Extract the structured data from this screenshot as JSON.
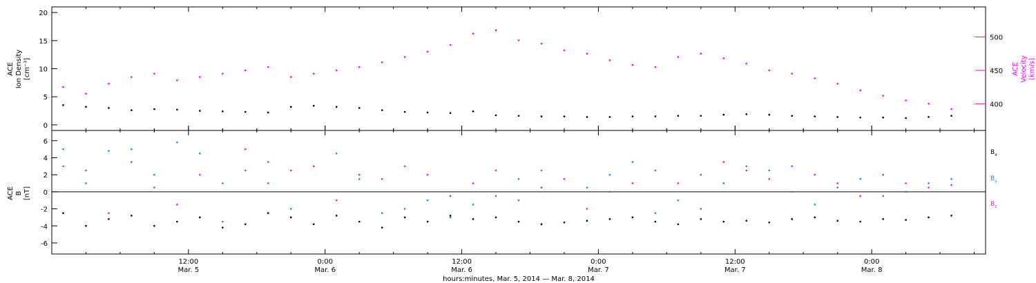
{
  "chart_data": [
    {
      "type": "scatter",
      "panel": "top",
      "xlim_hours": [
        0,
        82
      ],
      "x_ticks": [
        {
          "time": "12:00",
          "date": "Mar. 5"
        },
        {
          "time": "0:00",
          "date": "Mar. 6"
        },
        {
          "time": "12:00",
          "date": "Mar. 6"
        },
        {
          "time": "0:00",
          "date": "Mar. 7"
        },
        {
          "time": "12:00",
          "date": "Mar. 7"
        },
        {
          "time": "0:00",
          "date": "Mar. 8"
        }
      ],
      "left_axis": {
        "label_lines": [
          "ACE",
          "Ion Density",
          "[cm⁻³]"
        ],
        "ylim": [
          -1,
          21
        ],
        "ticks": [
          "0",
          "5",
          "10",
          "15",
          "20"
        ],
        "color": "#000000"
      },
      "right_axis": {
        "label_lines": [
          "ACE",
          "Velocity",
          "[km/s]"
        ],
        "ylim": [
          360,
          545
        ],
        "ticks": [
          "400",
          "450",
          "500"
        ],
        "color": "#ff00ff"
      },
      "series": [
        {
          "series_id": "density",
          "axis": "left",
          "color": "#000000",
          "x": [
            1,
            3,
            5,
            7,
            9,
            11,
            13,
            15,
            17,
            19,
            21,
            23,
            25,
            27,
            29,
            31,
            33,
            35,
            37,
            39,
            41,
            43,
            45,
            47,
            49,
            51,
            53,
            55,
            57,
            59,
            61,
            63,
            65,
            67,
            69,
            71,
            73,
            75,
            77,
            79
          ],
          "y": [
            3.5,
            3.2,
            3.0,
            2.6,
            2.8,
            2.7,
            2.5,
            2.4,
            2.3,
            2.2,
            3.2,
            3.4,
            3.2,
            3.0,
            2.6,
            2.3,
            2.2,
            2.1,
            2.4,
            1.7,
            1.6,
            1.5,
            1.5,
            1.4,
            1.4,
            1.5,
            1.5,
            1.6,
            1.6,
            1.8,
            1.9,
            1.8,
            1.6,
            1.5,
            1.4,
            1.3,
            1.3,
            1.2,
            1.4,
            1.6
          ]
        },
        {
          "series_id": "velocity",
          "axis": "right",
          "color": "#ff00ff",
          "x": [
            1,
            3,
            5,
            7,
            9,
            11,
            13,
            15,
            17,
            19,
            21,
            23,
            25,
            27,
            29,
            31,
            33,
            35,
            37,
            39,
            41,
            43,
            45,
            47,
            49,
            51,
            53,
            55,
            57,
            59,
            61,
            63,
            65,
            67,
            69,
            71,
            73,
            75,
            77,
            79
          ],
          "y": [
            425,
            415,
            430,
            440,
            445,
            435,
            440,
            445,
            450,
            455,
            440,
            445,
            450,
            455,
            462,
            470,
            478,
            488,
            505,
            510,
            495,
            490,
            480,
            475,
            465,
            458,
            455,
            470,
            475,
            468,
            460,
            450,
            445,
            438,
            430,
            420,
            412,
            405,
            400,
            392
          ]
        }
      ]
    },
    {
      "type": "scatter",
      "panel": "bottom",
      "xlim_hours": [
        0,
        82
      ],
      "left_axis": {
        "label_lines": [
          "ACE",
          "B",
          "[nT]"
        ],
        "ylim": [
          -7.3,
          7.2
        ],
        "ticks": [
          "-6",
          "-4",
          "-2",
          "0",
          "2",
          "4",
          "6"
        ],
        "color": "#000000"
      },
      "zero_line": 0,
      "legend": [
        {
          "label": "B",
          "sub": "x",
          "color": "#000000"
        },
        {
          "label": "B",
          "sub": "y",
          "color": "#1e88e5"
        },
        {
          "label": "B",
          "sub": "z",
          "color": "#e020e0"
        }
      ],
      "series": [
        {
          "series_id": "bx",
          "color": "#000000",
          "x": [
            1,
            3,
            5,
            7,
            9,
            11,
            13,
            15,
            17,
            19,
            21,
            23,
            25,
            27,
            29,
            31,
            33,
            35,
            37,
            39,
            41,
            43,
            45,
            47,
            49,
            51,
            53,
            55,
            57,
            59,
            61,
            63,
            65,
            67,
            69,
            71,
            73,
            75,
            77,
            79
          ],
          "y": [
            -2.5,
            -4.0,
            -3.2,
            -2.8,
            -4.0,
            -3.5,
            -3.0,
            -4.2,
            -3.8,
            -2.5,
            -3.0,
            -3.8,
            -2.8,
            -3.5,
            -4.2,
            -3.0,
            -3.5,
            -2.8,
            -3.2,
            -3.0,
            -3.5,
            -3.8,
            -3.6,
            -3.4,
            -3.2,
            -3.0,
            -3.5,
            -3.8,
            -3.2,
            -3.5,
            -3.4,
            -3.6,
            -3.2,
            -3.0,
            -3.4,
            -3.5,
            -3.2,
            -3.3,
            -3.0,
            -2.8
          ]
        },
        {
          "series_id": "by",
          "color": "#1e88e5",
          "x": [
            1,
            3,
            5,
            7,
            9,
            11,
            13,
            15,
            17,
            19,
            21,
            23,
            25,
            27,
            29,
            31,
            33,
            35,
            37,
            39,
            41,
            43,
            45,
            47,
            49,
            51,
            53,
            55,
            57,
            59,
            61,
            63,
            65,
            67,
            69,
            71,
            73,
            75,
            77,
            79
          ],
          "y": [
            5.0,
            1.0,
            4.8,
            5.0,
            2.0,
            5.8,
            4.5,
            1.0,
            2.5,
            3.5,
            -2.0,
            3.0,
            4.5,
            1.5,
            -2.5,
            -2.0,
            -1.0,
            -3.0,
            -1.5,
            -0.5,
            1.5,
            2.5,
            1.5,
            0.5,
            2.0,
            3.5,
            -2.5,
            -1.0,
            -2.0,
            1.0,
            3.0,
            2.5,
            0.0,
            -1.5,
            0.5,
            1.5,
            -0.5,
            0.0,
            1.0,
            1.5
          ]
        },
        {
          "series_id": "bz",
          "color": "#e020e0",
          "x": [
            1,
            3,
            5,
            7,
            9,
            11,
            13,
            15,
            17,
            19,
            21,
            23,
            25,
            27,
            29,
            31,
            33,
            35,
            37,
            39,
            41,
            43,
            45,
            47,
            49,
            51,
            53,
            55,
            57,
            59,
            61,
            63,
            65,
            67,
            69,
            71,
            73,
            75,
            77,
            79
          ],
          "y": [
            3.0,
            2.5,
            -2.5,
            3.5,
            0.5,
            -1.5,
            2.0,
            -3.5,
            5.0,
            1.0,
            2.5,
            3.0,
            -1.0,
            2.0,
            1.5,
            3.0,
            2.0,
            -0.5,
            1.0,
            2.5,
            -1.0,
            0.5,
            1.5,
            -2.0,
            0.0,
            1.0,
            2.5,
            1.0,
            2.0,
            3.5,
            2.5,
            1.5,
            3.0,
            2.0,
            1.0,
            -0.5,
            2.0,
            1.0,
            0.5,
            0.8
          ]
        }
      ]
    }
  ],
  "x_axis_title": "hours:minutes, Mar. 5, 2014 — Mar. 8, 2014"
}
